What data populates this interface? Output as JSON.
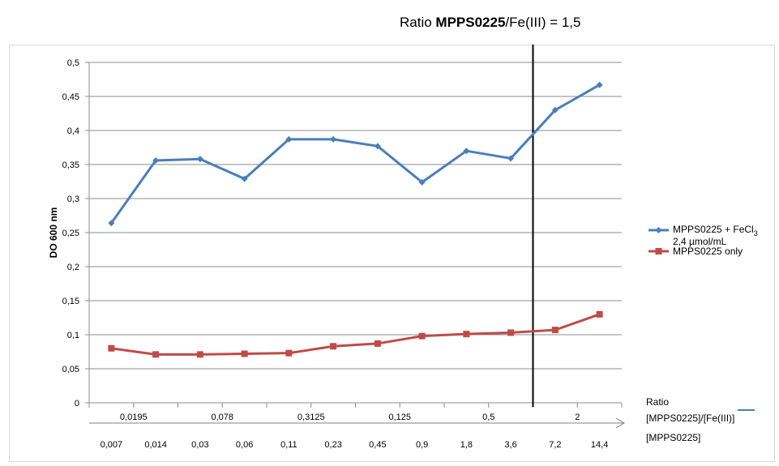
{
  "top_title": {
    "prefix": "Ratio ",
    "bold": "MPPS0225",
    "suffix": "/Fe(III) = 1,5"
  },
  "chart_data": {
    "type": "line",
    "ylabel": "DO 600 nm",
    "ylim": [
      0,
      0.5
    ],
    "y_ticks": [
      "0",
      "0,05",
      "0,1",
      "0,15",
      "0,2",
      "0,25",
      "0,3",
      "0,35",
      "0,4",
      "0,45",
      "0,5"
    ],
    "grid": true,
    "legend_placement": "right",
    "x": [
      "0,007",
      "0,014",
      "0,03",
      "0,06",
      "0,11",
      "0,23",
      "0,45",
      "0,9",
      "1,8",
      "3,6",
      "7,2",
      "14,4"
    ],
    "x_axis_label": "[MPPS0225]",
    "ratio_ticks": [
      "0,0195",
      "0,078",
      "0,3125",
      "0,125",
      "0,5",
      "2"
    ],
    "ratio_axis_label_line1": "Ratio",
    "ratio_axis_label_line2": "[MPPS0225]/[Fe(III)]",
    "vertical_marker_between": [
      "3,6",
      "7,2"
    ],
    "series": [
      {
        "name": "MPPS0225 + FeCl3",
        "name_sub": "3",
        "name_line2": "2,4 µmol/mL",
        "color": "#4a7ebb",
        "marker": "diamond",
        "values": [
          0.264,
          0.356,
          0.358,
          0.329,
          0.387,
          0.387,
          0.377,
          0.324,
          0.37,
          0.359,
          0.43,
          0.467
        ]
      },
      {
        "name": "MPPS0225 only",
        "color": "#be4b48",
        "marker": "square",
        "values": [
          0.08,
          0.071,
          0.071,
          0.072,
          0.073,
          0.083,
          0.087,
          0.098,
          0.101,
          0.103,
          0.107,
          0.13
        ]
      }
    ]
  }
}
